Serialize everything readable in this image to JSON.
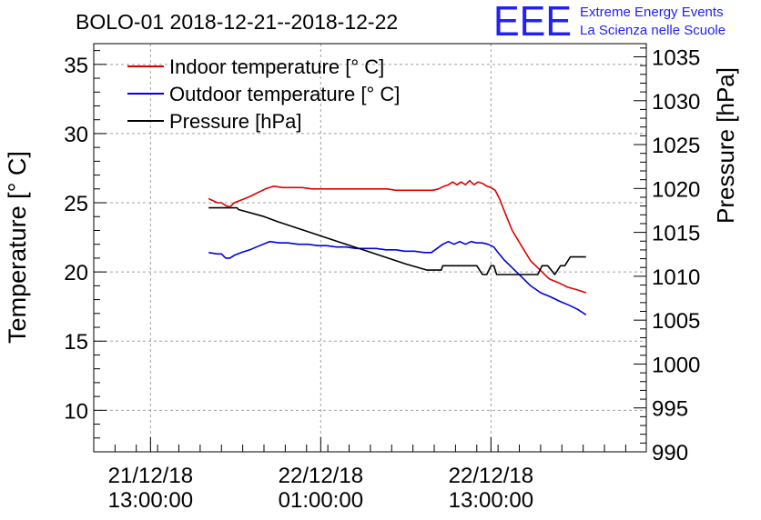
{
  "chart_data": {
    "type": "line",
    "title": "BOLO-01 2018-12-21--2018-12-22",
    "ylabel": "Temperature [° C]",
    "y2label": "Pressure [hPa]",
    "xlabel": "",
    "ylim": [
      7,
      36.5
    ],
    "y2lim": [
      990,
      1036.5
    ],
    "yticks": [
      "10",
      "15",
      "20",
      "25",
      "30",
      "35"
    ],
    "y2ticks": [
      "990",
      "995",
      "1000",
      "1005",
      "1010",
      "1015",
      "1020",
      "1025",
      "1030",
      "1035"
    ],
    "xticks": [
      {
        "date": "21/12/18",
        "time": "13:00:00",
        "hours": 13
      },
      {
        "date": "22/12/18",
        "time": "01:00:00",
        "hours": 25
      },
      {
        "date": "22/12/18",
        "time": "13:00:00",
        "hours": 37
      }
    ],
    "grid": true,
    "legend_position": "top-left",
    "series": [
      {
        "name": "Indoor temperature [° C]",
        "color": "#e00000",
        "axis": "left",
        "x": [
          17.1,
          17.7,
          18.0,
          18.3,
          18.6,
          18.9,
          19.4,
          19.9,
          20.5,
          21.1,
          21.7,
          22.3,
          23.0,
          23.7,
          24.4,
          25.0,
          25.7,
          26.4,
          27.0,
          27.7,
          28.4,
          29.0,
          29.7,
          30.3,
          31.0,
          31.6,
          32.3,
          32.9,
          33.3,
          33.7,
          34.0,
          34.3,
          34.6,
          34.9,
          35.2,
          35.5,
          35.8,
          36.1,
          36.4,
          36.7,
          37.0,
          37.3,
          37.6,
          37.9,
          38.5,
          39.2,
          39.8,
          40.5,
          41.1,
          41.8,
          42.4,
          43.1,
          43.7
        ],
        "y": [
          25.3,
          25.0,
          25.0,
          24.8,
          24.7,
          25.0,
          25.2,
          25.4,
          25.7,
          26.0,
          26.2,
          26.1,
          26.1,
          26.1,
          26.0,
          26.0,
          26.0,
          26.0,
          26.0,
          26.0,
          26.0,
          26.0,
          26.0,
          25.9,
          25.9,
          25.9,
          25.9,
          25.9,
          26.0,
          26.2,
          26.3,
          26.5,
          26.3,
          26.5,
          26.3,
          26.6,
          26.3,
          26.5,
          26.4,
          26.2,
          26.1,
          25.9,
          25.3,
          24.5,
          23.0,
          21.8,
          20.8,
          20.1,
          19.5,
          19.2,
          18.9,
          18.7,
          18.5
        ]
      },
      {
        "name": "Outdoor temperature [° C]",
        "color": "#0000e0",
        "axis": "left",
        "x": [
          17.1,
          17.7,
          18.0,
          18.3,
          18.6,
          18.9,
          19.4,
          20.0,
          20.7,
          21.4,
          22.1,
          22.7,
          23.4,
          24.1,
          24.8,
          25.4,
          26.1,
          26.8,
          27.5,
          28.2,
          28.9,
          29.6,
          30.3,
          30.9,
          31.6,
          32.3,
          32.8,
          33.2,
          33.6,
          34.0,
          34.4,
          34.8,
          35.2,
          35.6,
          36.0,
          36.4,
          36.8,
          37.2,
          37.5,
          37.9,
          38.5,
          39.2,
          39.8,
          40.5,
          41.2,
          41.8,
          42.5,
          43.1,
          43.7
        ],
        "y": [
          21.4,
          21.3,
          21.3,
          21.0,
          21.0,
          21.2,
          21.4,
          21.6,
          21.9,
          22.2,
          22.1,
          22.1,
          22.0,
          22.0,
          21.9,
          21.9,
          21.8,
          21.8,
          21.7,
          21.7,
          21.7,
          21.6,
          21.6,
          21.5,
          21.5,
          21.4,
          21.4,
          21.7,
          22.0,
          22.2,
          22.0,
          22.2,
          22.0,
          22.2,
          22.1,
          22.1,
          22.0,
          21.8,
          21.4,
          20.9,
          20.3,
          19.6,
          19.0,
          18.5,
          18.2,
          17.9,
          17.6,
          17.3,
          16.9
        ]
      },
      {
        "name": "Pressure [hPa]",
        "color": "#000000",
        "axis": "right",
        "x": [
          17.1,
          19.1,
          19.2,
          21.0,
          22.0,
          23.5,
          25.0,
          26.5,
          28.0,
          29.5,
          31.0,
          32.5,
          33.5,
          33.6,
          34.0,
          36.0,
          36.4,
          36.7,
          37.0,
          37.2,
          37.4,
          37.7,
          38.0,
          40.3,
          40.6,
          41.0,
          41.5,
          41.9,
          42.2,
          42.6,
          43.0,
          43.3,
          43.7
        ],
        "y": [
          1017.8,
          1017.8,
          1017.6,
          1016.8,
          1016.2,
          1015.4,
          1014.6,
          1013.8,
          1013.0,
          1012.2,
          1011.4,
          1010.7,
          1010.7,
          1011.2,
          1011.2,
          1011.2,
          1010.2,
          1010.2,
          1011.2,
          1011.2,
          1010.2,
          1010.2,
          1010.2,
          1010.2,
          1011.2,
          1011.2,
          1010.2,
          1011.2,
          1011.2,
          1012.2,
          1012.2,
          1012.2,
          1012.2
        ]
      }
    ]
  },
  "logo": {
    "mark": "EEE",
    "line1": "Extreme Energy Events",
    "line2": "La Scienza nelle Scuole",
    "color": "#2020ff"
  }
}
